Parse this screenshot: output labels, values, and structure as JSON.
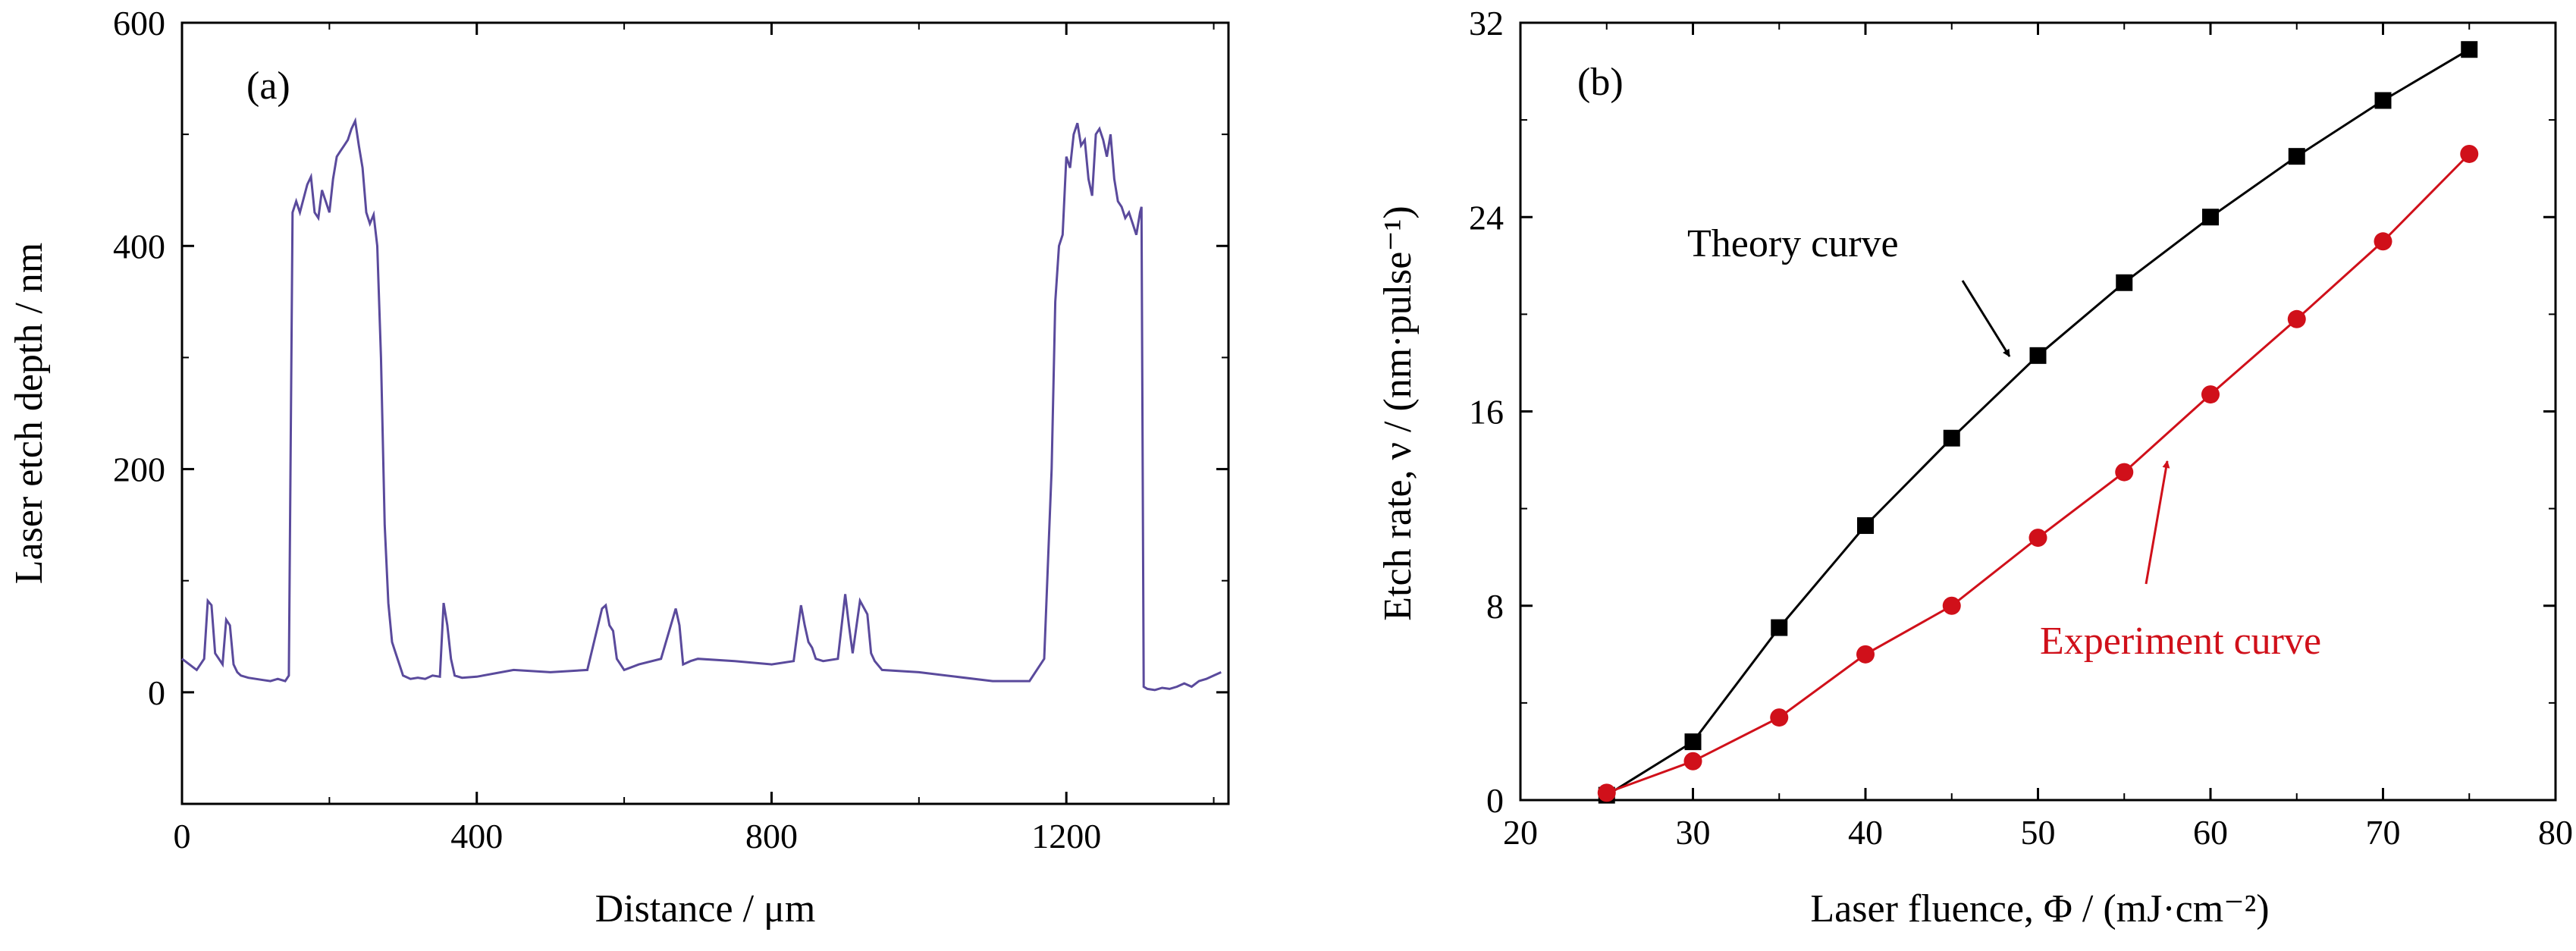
{
  "chart_data": [
    {
      "type": "line",
      "panel_label": "(a)",
      "xlabel": "Distance / μm",
      "ylabel": "Laser etch depth / nm",
      "xlim": [
        0,
        1420
      ],
      "ylim": [
        -100,
        600
      ],
      "xticks": [
        0,
        400,
        800,
        1200
      ],
      "yticks": [
        0,
        200,
        400,
        600
      ],
      "line_color": "#5a4a9c",
      "series": [
        {
          "x": [
            0,
            10,
            20,
            30,
            35,
            40,
            45,
            50,
            55,
            60,
            65,
            70,
            75,
            80,
            90,
            100,
            110,
            120,
            130,
            140,
            145,
            150,
            155,
            160,
            170,
            175,
            180,
            185,
            190,
            195,
            200,
            205,
            210,
            215,
            220,
            225,
            230,
            235,
            240,
            245,
            250,
            255,
            260,
            265,
            270,
            275,
            280,
            285,
            290,
            295,
            300,
            310,
            320,
            330,
            340,
            350,
            355,
            360,
            365,
            370,
            380,
            400,
            450,
            500,
            550,
            570,
            575,
            580,
            585,
            590,
            600,
            620,
            650,
            670,
            675,
            680,
            690,
            700,
            750,
            800,
            830,
            840,
            845,
            850,
            855,
            860,
            870,
            890,
            900,
            905,
            910,
            920,
            930,
            935,
            940,
            950,
            1000,
            1050,
            1100,
            1150,
            1170,
            1180,
            1185,
            1190,
            1195,
            1200,
            1205,
            1210,
            1215,
            1220,
            1225,
            1230,
            1235,
            1240,
            1245,
            1250,
            1255,
            1260,
            1265,
            1270,
            1275,
            1280,
            1285,
            1290,
            1295,
            1300,
            1302,
            1305,
            1310,
            1320,
            1330,
            1340,
            1350,
            1360,
            1370,
            1380,
            1390,
            1400,
            1410
          ],
          "y": [
            30,
            25,
            20,
            30,
            82,
            78,
            35,
            30,
            25,
            65,
            60,
            25,
            18,
            15,
            13,
            12,
            11,
            10,
            12,
            10,
            15,
            430,
            440,
            430,
            455,
            462,
            430,
            425,
            450,
            440,
            430,
            460,
            480,
            485,
            490,
            495,
            505,
            512,
            490,
            470,
            430,
            420,
            428,
            400,
            300,
            150,
            80,
            45,
            35,
            25,
            15,
            12,
            13,
            12,
            15,
            14,
            80,
            60,
            30,
            15,
            13,
            14,
            20,
            18,
            20,
            75,
            78,
            60,
            55,
            30,
            20,
            25,
            30,
            75,
            60,
            25,
            28,
            30,
            28,
            25,
            28,
            78,
            60,
            45,
            40,
            30,
            28,
            30,
            88,
            60,
            35,
            82,
            70,
            35,
            28,
            20,
            18,
            14,
            10,
            10,
            30,
            200,
            350,
            400,
            410,
            480,
            470,
            500,
            510,
            490,
            495,
            460,
            445,
            500,
            505,
            495,
            480,
            500,
            460,
            440,
            435,
            425,
            430,
            420,
            410,
            430,
            435,
            5,
            3,
            2,
            4,
            3,
            5,
            8,
            5,
            10,
            12,
            15,
            18
          ]
        }
      ]
    },
    {
      "type": "line",
      "panel_label": "(b)",
      "xlabel": "Laser fluence, Φ / (mJ·cm⁻²)",
      "ylabel": "Etch rate, ν / (nm·pulse⁻¹)",
      "xlim": [
        20,
        80
      ],
      "ylim": [
        0,
        32
      ],
      "xticks": [
        20,
        30,
        40,
        50,
        60,
        70,
        80
      ],
      "yticks": [
        0,
        8,
        16,
        24,
        32
      ],
      "x": [
        25,
        30,
        35,
        40,
        45,
        50,
        55,
        60,
        65,
        70,
        75
      ],
      "series": [
        {
          "name": "Theory curve",
          "marker": "square",
          "color": "#000000",
          "values": [
            0.2,
            2.4,
            7.1,
            11.3,
            14.9,
            18.3,
            21.3,
            24.0,
            26.5,
            28.8,
            30.9
          ]
        },
        {
          "name": "Experiment curve",
          "marker": "circle",
          "color": "#d0101a",
          "values": [
            0.3,
            1.6,
            3.4,
            6.0,
            8.0,
            10.8,
            13.5,
            16.7,
            19.8,
            23.0,
            26.6
          ]
        }
      ]
    }
  ]
}
